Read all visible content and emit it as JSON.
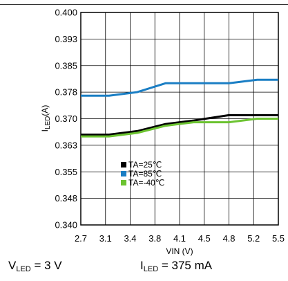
{
  "chart_data": {
    "type": "line",
    "x_tick_labels": [
      "2.7",
      "3.1",
      "3.4",
      "3.8",
      "4.1",
      "4.5",
      "4.8",
      "5.2",
      "5.5"
    ],
    "y_tick_labels": [
      "0.400",
      "0.393",
      "0.385",
      "0.378",
      "0.370",
      "0.363",
      "0.355",
      "0.348",
      "0.340"
    ],
    "xlabel": "VIN (V)",
    "ylabel": {
      "main": "I",
      "sub": "LED",
      "unit": "(A)"
    },
    "xlim": [
      2.7,
      5.5
    ],
    "ylim": [
      0.34,
      0.4
    ],
    "grid": true,
    "legend_position": "lower-middle",
    "series": [
      {
        "name": "TA=25℃",
        "color": "#000000",
        "x": [
          2.7,
          3.1,
          3.5,
          3.9,
          4.3,
          4.8,
          5.5
        ],
        "y": [
          0.3655,
          0.3655,
          0.3665,
          0.3685,
          0.3695,
          0.371,
          0.371
        ]
      },
      {
        "name": "TA=85℃",
        "color": "#1a7ec4",
        "x": [
          2.7,
          3.1,
          3.5,
          3.9,
          4.3,
          4.8,
          5.2,
          5.5
        ],
        "y": [
          0.3765,
          0.3765,
          0.3775,
          0.38,
          0.38,
          0.38,
          0.381,
          0.381
        ]
      },
      {
        "name": "TA=-40℃",
        "color": "#6cc331",
        "x": [
          2.7,
          3.1,
          3.5,
          3.9,
          4.3,
          4.8,
          5.2,
          5.5
        ],
        "y": [
          0.365,
          0.365,
          0.366,
          0.368,
          0.369,
          0.369,
          0.37,
          0.37
        ]
      }
    ]
  },
  "caption": {
    "left": {
      "main": "V",
      "sub": "LED",
      "value": " = 3 V"
    },
    "right": {
      "main": "I",
      "sub": "LED",
      "value": " = 375 mA"
    }
  }
}
